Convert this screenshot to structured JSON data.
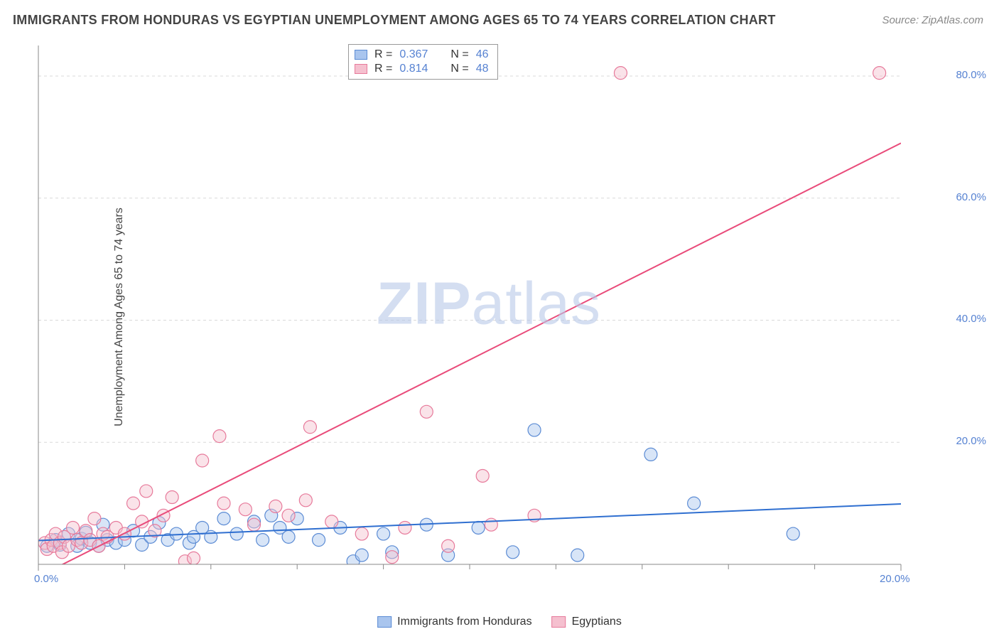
{
  "title": "IMMIGRANTS FROM HONDURAS VS EGYPTIAN UNEMPLOYMENT AMONG AGES 65 TO 74 YEARS CORRELATION CHART",
  "source": "Source: ZipAtlas.com",
  "watermark_a": "ZIP",
  "watermark_b": "atlas",
  "yaxis_label": "Unemployment Among Ages 65 to 74 years",
  "chart": {
    "type": "scatter",
    "background_color": "#ffffff",
    "grid_color": "#d9d9d9",
    "axis_line_color": "#888888",
    "tick_color": "#888888",
    "xlim": [
      0,
      20
    ],
    "ylim": [
      0,
      85
    ],
    "x_ticks_major": [
      0,
      20
    ],
    "x_tick_labels": [
      "0.0%",
      "20.0%"
    ],
    "x_ticks_minor": [
      2,
      4,
      6,
      8,
      10,
      12,
      14,
      16,
      18
    ],
    "y_ticks_major": [
      20,
      40,
      60,
      80
    ],
    "y_tick_labels": [
      "20.0%",
      "40.0%",
      "60.0%",
      "80.0%"
    ],
    "marker_radius": 9,
    "marker_stroke_width": 1.2,
    "marker_fill_opacity": 0.45,
    "regression_line_width": 2,
    "series": [
      {
        "name": "Immigrants from Honduras",
        "legend_label": "Immigrants from Honduras",
        "color_fill": "#a9c5ee",
        "color_stroke": "#5b8bd4",
        "line_color": "#2f6fd0",
        "R": 0.367,
        "N": 46,
        "regression": {
          "x1": 0,
          "y1": 3.9,
          "x2": 20,
          "y2": 9.9
        },
        "points": [
          [
            0.2,
            3.0
          ],
          [
            0.4,
            4.0
          ],
          [
            0.5,
            3.2
          ],
          [
            0.7,
            5.0
          ],
          [
            0.9,
            3.0
          ],
          [
            1.0,
            4.2
          ],
          [
            1.1,
            5.2
          ],
          [
            1.2,
            3.5
          ],
          [
            1.4,
            3.0
          ],
          [
            1.5,
            6.5
          ],
          [
            1.6,
            4.0
          ],
          [
            1.8,
            3.5
          ],
          [
            2.0,
            4.0
          ],
          [
            2.2,
            5.5
          ],
          [
            2.4,
            3.2
          ],
          [
            2.6,
            4.5
          ],
          [
            2.8,
            6.8
          ],
          [
            3.0,
            4.0
          ],
          [
            3.2,
            5.0
          ],
          [
            3.5,
            3.5
          ],
          [
            3.6,
            4.5
          ],
          [
            3.8,
            6.0
          ],
          [
            4.0,
            4.5
          ],
          [
            4.3,
            7.5
          ],
          [
            4.6,
            5.0
          ],
          [
            5.0,
            7.0
          ],
          [
            5.2,
            4.0
          ],
          [
            5.4,
            8.0
          ],
          [
            5.6,
            6.0
          ],
          [
            5.8,
            4.5
          ],
          [
            6.0,
            7.5
          ],
          [
            6.5,
            4.0
          ],
          [
            7.0,
            6.0
          ],
          [
            7.3,
            0.5
          ],
          [
            7.5,
            1.5
          ],
          [
            8.0,
            5.0
          ],
          [
            8.2,
            2.0
          ],
          [
            9.0,
            6.5
          ],
          [
            9.5,
            1.5
          ],
          [
            10.2,
            6.0
          ],
          [
            11.0,
            2.0
          ],
          [
            11.5,
            22.0
          ],
          [
            12.5,
            1.5
          ],
          [
            14.2,
            18.0
          ],
          [
            15.2,
            10.0
          ],
          [
            17.5,
            5.0
          ]
        ]
      },
      {
        "name": "Egyptians",
        "legend_label": "Egyptians",
        "color_fill": "#f5c0cf",
        "color_stroke": "#e77a9b",
        "line_color": "#e94b7a",
        "R": 0.814,
        "N": 48,
        "regression": {
          "x1": 0,
          "y1": -2.0,
          "x2": 20,
          "y2": 69.0
        },
        "points": [
          [
            0.15,
            3.5
          ],
          [
            0.2,
            2.5
          ],
          [
            0.3,
            4.0
          ],
          [
            0.35,
            3.0
          ],
          [
            0.4,
            5.0
          ],
          [
            0.5,
            3.5
          ],
          [
            0.55,
            2.0
          ],
          [
            0.6,
            4.5
          ],
          [
            0.7,
            3.0
          ],
          [
            0.8,
            6.0
          ],
          [
            0.9,
            4.0
          ],
          [
            1.0,
            3.5
          ],
          [
            1.1,
            5.5
          ],
          [
            1.2,
            4.0
          ],
          [
            1.3,
            7.5
          ],
          [
            1.4,
            3.0
          ],
          [
            1.5,
            5.0
          ],
          [
            1.6,
            4.5
          ],
          [
            1.8,
            6.0
          ],
          [
            2.0,
            5.0
          ],
          [
            2.2,
            10.0
          ],
          [
            2.4,
            7.0
          ],
          [
            2.5,
            12.0
          ],
          [
            2.7,
            5.5
          ],
          [
            2.9,
            8.0
          ],
          [
            3.1,
            11.0
          ],
          [
            3.4,
            0.5
          ],
          [
            3.6,
            1.0
          ],
          [
            3.8,
            17.0
          ],
          [
            4.2,
            21.0
          ],
          [
            4.3,
            10.0
          ],
          [
            4.8,
            9.0
          ],
          [
            5.0,
            6.5
          ],
          [
            5.5,
            9.5
          ],
          [
            5.8,
            8.0
          ],
          [
            6.2,
            10.5
          ],
          [
            6.3,
            22.5
          ],
          [
            6.8,
            7.0
          ],
          [
            7.5,
            5.0
          ],
          [
            8.2,
            1.2
          ],
          [
            9.0,
            25.0
          ],
          [
            9.5,
            3.0
          ],
          [
            10.3,
            14.5
          ],
          [
            10.5,
            6.5
          ],
          [
            11.5,
            8.0
          ],
          [
            13.5,
            80.5
          ],
          [
            19.5,
            80.5
          ],
          [
            8.5,
            6.0
          ]
        ]
      }
    ],
    "stats_box": {
      "rows": [
        {
          "swatch_fill": "#a9c5ee",
          "swatch_stroke": "#5b8bd4",
          "r_label": "R =",
          "r_val": "0.367",
          "n_label": "N =",
          "n_val": "46"
        },
        {
          "swatch_fill": "#f5c0cf",
          "swatch_stroke": "#e77a9b",
          "r_label": "R =",
          "r_val": "0.814",
          "n_label": "N =",
          "n_val": "48"
        }
      ]
    }
  }
}
